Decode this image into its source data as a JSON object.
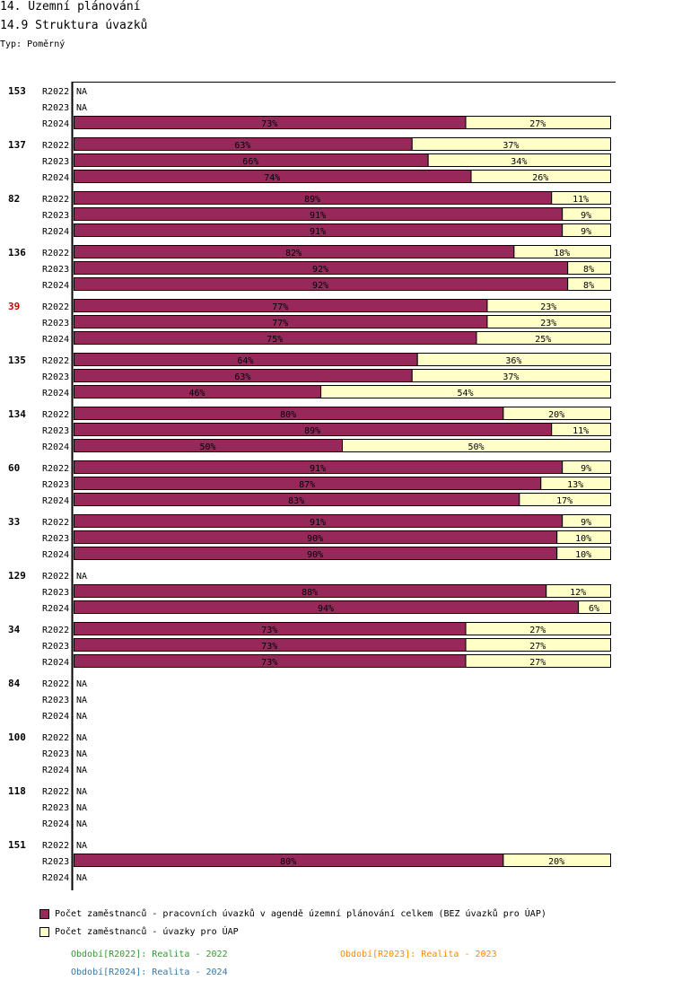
{
  "header": {
    "title": "14. Územní plánování",
    "subtitle": "14.9 Struktura úvazků",
    "type_label": "Typ: Poměrný"
  },
  "chart_data": {
    "type": "bar",
    "stacked": true,
    "orientation": "horizontal",
    "unit": "%",
    "xlim": [
      0,
      100
    ],
    "series": [
      {
        "name": "Počet zaměstnanců - pracovních úvazků v agendě územní plánování celkem (BEZ úvazků pro ÚAP)",
        "color": "#96285a"
      },
      {
        "name": "Počet zaměstnanců - úvazky pro ÚAP",
        "color": "#ffffc8"
      }
    ],
    "groups": [
      {
        "label": "153",
        "highlight": false,
        "rows": [
          {
            "period": "R2022",
            "values": null
          },
          {
            "period": "R2023",
            "values": null
          },
          {
            "period": "R2024",
            "values": [
              73,
              27
            ]
          }
        ]
      },
      {
        "label": "137",
        "highlight": false,
        "rows": [
          {
            "period": "R2022",
            "values": [
              63,
              37
            ]
          },
          {
            "period": "R2023",
            "values": [
              66,
              34
            ]
          },
          {
            "period": "R2024",
            "values": [
              74,
              26
            ]
          }
        ]
      },
      {
        "label": "82",
        "highlight": false,
        "rows": [
          {
            "period": "R2022",
            "values": [
              89,
              11
            ]
          },
          {
            "period": "R2023",
            "values": [
              91,
              9
            ]
          },
          {
            "period": "R2024",
            "values": [
              91,
              9
            ]
          }
        ]
      },
      {
        "label": "136",
        "highlight": false,
        "rows": [
          {
            "period": "R2022",
            "values": [
              82,
              18
            ]
          },
          {
            "period": "R2023",
            "values": [
              92,
              8
            ]
          },
          {
            "period": "R2024",
            "values": [
              92,
              8
            ]
          }
        ]
      },
      {
        "label": "39",
        "highlight": true,
        "rows": [
          {
            "period": "R2022",
            "values": [
              77,
              23
            ]
          },
          {
            "period": "R2023",
            "values": [
              77,
              23
            ]
          },
          {
            "period": "R2024",
            "values": [
              75,
              25
            ]
          }
        ]
      },
      {
        "label": "135",
        "highlight": false,
        "rows": [
          {
            "period": "R2022",
            "values": [
              64,
              36
            ]
          },
          {
            "period": "R2023",
            "values": [
              63,
              37
            ]
          },
          {
            "period": "R2024",
            "values": [
              46,
              54
            ]
          }
        ]
      },
      {
        "label": "134",
        "highlight": false,
        "rows": [
          {
            "period": "R2022",
            "values": [
              80,
              20
            ]
          },
          {
            "period": "R2023",
            "values": [
              89,
              11
            ]
          },
          {
            "period": "R2024",
            "values": [
              50,
              50
            ]
          }
        ]
      },
      {
        "label": "60",
        "highlight": false,
        "rows": [
          {
            "period": "R2022",
            "values": [
              91,
              9
            ]
          },
          {
            "period": "R2023",
            "values": [
              87,
              13
            ]
          },
          {
            "period": "R2024",
            "values": [
              83,
              17
            ]
          }
        ]
      },
      {
        "label": "33",
        "highlight": false,
        "rows": [
          {
            "period": "R2022",
            "values": [
              91,
              9
            ]
          },
          {
            "period": "R2023",
            "values": [
              90,
              10
            ]
          },
          {
            "period": "R2024",
            "values": [
              90,
              10
            ]
          }
        ]
      },
      {
        "label": "129",
        "highlight": false,
        "rows": [
          {
            "period": "R2022",
            "values": null
          },
          {
            "period": "R2023",
            "values": [
              88,
              12
            ]
          },
          {
            "period": "R2024",
            "values": [
              94,
              6
            ]
          }
        ]
      },
      {
        "label": "34",
        "highlight": false,
        "rows": [
          {
            "period": "R2022",
            "values": [
              73,
              27
            ]
          },
          {
            "period": "R2023",
            "values": [
              73,
              27
            ]
          },
          {
            "period": "R2024",
            "values": [
              73,
              27
            ]
          }
        ]
      },
      {
        "label": "84",
        "highlight": false,
        "rows": [
          {
            "period": "R2022",
            "values": null
          },
          {
            "period": "R2023",
            "values": null
          },
          {
            "period": "R2024",
            "values": null
          }
        ]
      },
      {
        "label": "100",
        "highlight": false,
        "rows": [
          {
            "period": "R2022",
            "values": null
          },
          {
            "period": "R2023",
            "values": null
          },
          {
            "period": "R2024",
            "values": null
          }
        ]
      },
      {
        "label": "118",
        "highlight": false,
        "rows": [
          {
            "period": "R2022",
            "values": null
          },
          {
            "period": "R2023",
            "values": null
          },
          {
            "period": "R2024",
            "values": null
          }
        ]
      },
      {
        "label": "151",
        "highlight": false,
        "rows": [
          {
            "period": "R2022",
            "values": null
          },
          {
            "period": "R2023",
            "values": [
              80,
              20
            ]
          },
          {
            "period": "R2024",
            "values": null
          }
        ]
      }
    ],
    "na_label": "NA",
    "highlight_color": "#cc0000"
  },
  "legend": {
    "items": [
      {
        "label": "Počet zaměstnanců - pracovních úvazků v agendě územní plánování celkem (BEZ úvazků pro ÚAP)",
        "color": "#96285a"
      },
      {
        "label": "Počet zaměstnanců - úvazky pro ÚAP",
        "color": "#ffffc8"
      }
    ]
  },
  "periods": {
    "r2022": {
      "text": "Období[R2022]: Realita - 2022",
      "color": "#339933"
    },
    "r2023": {
      "text": "Období[R2023]: Realita - 2023",
      "color": "#ff8800"
    },
    "r2024": {
      "text": "Období[R2024]: Realita - 2024",
      "color": "#3377aa"
    }
  }
}
